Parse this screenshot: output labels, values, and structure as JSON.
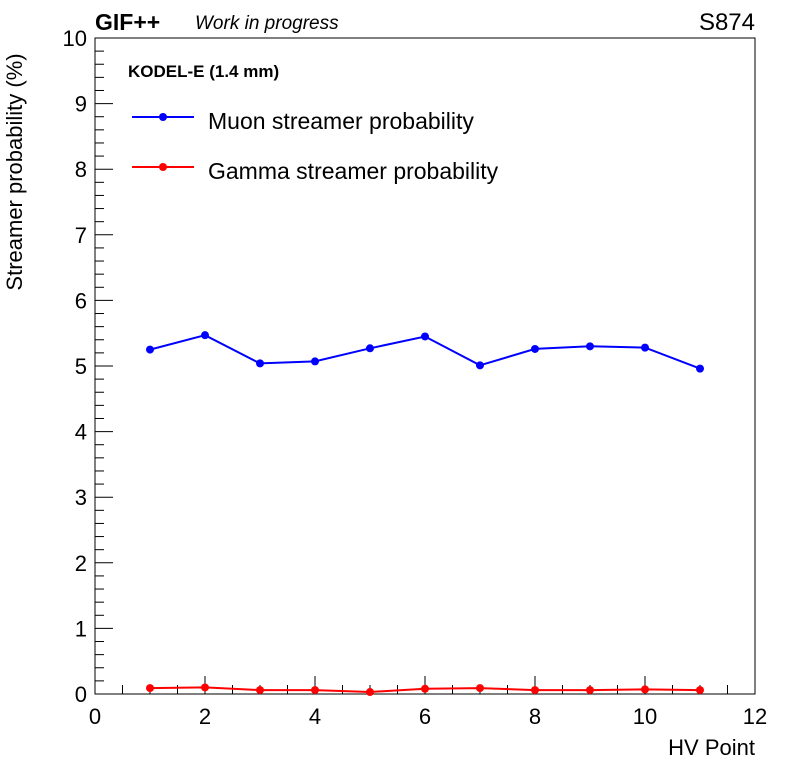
{
  "header": {
    "experiment": "GIF++",
    "status": "Work in progress",
    "chamber": "S874"
  },
  "annotation": "KODEL-E (1.4 mm)",
  "chart_data": {
    "type": "line",
    "xlabel": "HV Point",
    "ylabel": "Streamer probability (%)",
    "xlim": [
      0,
      12
    ],
    "ylim": [
      0,
      10
    ],
    "x_ticks": [
      "0",
      "2",
      "4",
      "6",
      "8",
      "10",
      "12"
    ],
    "y_ticks": [
      "0",
      "1",
      "2",
      "3",
      "4",
      "5",
      "6",
      "7",
      "8",
      "9",
      "10"
    ],
    "grid": false,
    "legend_position": "top-left",
    "x": [
      1,
      2,
      3,
      4,
      5,
      6,
      7,
      8,
      9,
      10,
      11
    ],
    "series": [
      {
        "name": "Muon streamer probability",
        "color": "#0000ff",
        "values": [
          5.25,
          5.47,
          5.04,
          5.07,
          5.27,
          5.45,
          5.01,
          5.26,
          5.3,
          5.28,
          4.96
        ]
      },
      {
        "name": "Gamma streamer probability",
        "color": "#ff0000",
        "values": [
          0.09,
          0.1,
          0.06,
          0.06,
          0.03,
          0.08,
          0.09,
          0.06,
          0.06,
          0.07,
          0.06
        ]
      }
    ]
  }
}
